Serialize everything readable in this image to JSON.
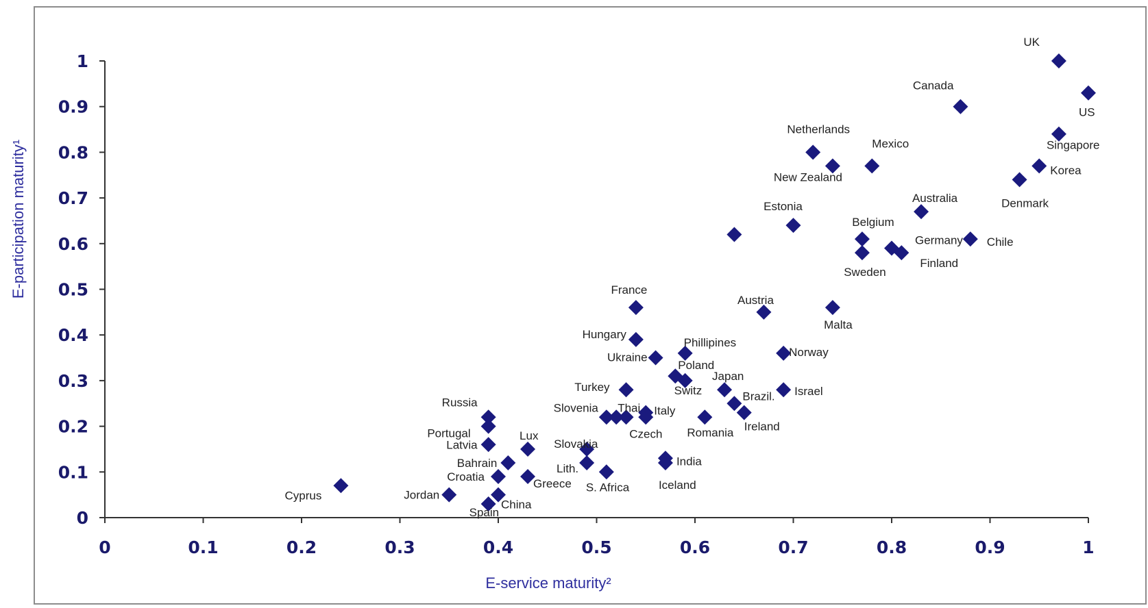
{
  "colors": {
    "marker": "#1a1a7e",
    "axis_text": "#1a1a6b",
    "axis_title": "#2e2e9e",
    "border": "#8c8c8c"
  },
  "chart_data": {
    "type": "scatter",
    "xlabel": "E-service maturity²",
    "ylabel": "E-participation maturity¹",
    "xlim": [
      0,
      1
    ],
    "ylim": [
      0,
      1
    ],
    "x_ticks": [
      "0",
      "0.1",
      "0.2",
      "0.3",
      "0.4",
      "0.5",
      "0.6",
      "0.7",
      "0.8",
      "0.9",
      "1"
    ],
    "y_ticks": [
      "0",
      "0.1",
      "0.2",
      "0.3",
      "0.4",
      "0.5",
      "0.6",
      "0.7",
      "0.8",
      "0.9",
      "1"
    ],
    "grid": false,
    "legend": "none",
    "points": [
      {
        "label": "UK",
        "x": 0.97,
        "y": 1.0
      },
      {
        "label": "US",
        "x": 1.0,
        "y": 0.93
      },
      {
        "label": "Canada",
        "x": 0.87,
        "y": 0.9
      },
      {
        "label": "Singapore",
        "x": 0.97,
        "y": 0.84
      },
      {
        "label": "Netherlands",
        "x": 0.72,
        "y": 0.8
      },
      {
        "label": "New Zealand",
        "x": 0.74,
        "y": 0.77
      },
      {
        "label": "Mexico",
        "x": 0.78,
        "y": 0.77
      },
      {
        "label": "Korea",
        "x": 0.95,
        "y": 0.77
      },
      {
        "label": "Denmark",
        "x": 0.93,
        "y": 0.74
      },
      {
        "label": "Australia",
        "x": 0.83,
        "y": 0.67
      },
      {
        "label": "Estonia",
        "x": 0.7,
        "y": 0.64
      },
      {
        "label": "",
        "x": 0.64,
        "y": 0.62
      },
      {
        "label": "Belgium",
        "x": 0.77,
        "y": 0.61
      },
      {
        "label": "Chile",
        "x": 0.88,
        "y": 0.61
      },
      {
        "label": "Germany",
        "x": 0.8,
        "y": 0.59
      },
      {
        "label": "Finland",
        "x": 0.81,
        "y": 0.58
      },
      {
        "label": "Sweden",
        "x": 0.77,
        "y": 0.58
      },
      {
        "label": "France",
        "x": 0.54,
        "y": 0.46
      },
      {
        "label": "Malta",
        "x": 0.74,
        "y": 0.46
      },
      {
        "label": "Austria",
        "x": 0.67,
        "y": 0.45
      },
      {
        "label": "Hungary",
        "x": 0.54,
        "y": 0.39
      },
      {
        "label": "Phillipines",
        "x": 0.59,
        "y": 0.36
      },
      {
        "label": "Norway",
        "x": 0.69,
        "y": 0.36
      },
      {
        "label": "Ukraine",
        "x": 0.56,
        "y": 0.35
      },
      {
        "label": "Poland",
        "x": 0.58,
        "y": 0.31
      },
      {
        "label": "Switz",
        "x": 0.59,
        "y": 0.3
      },
      {
        "label": "Turkey",
        "x": 0.53,
        "y": 0.28
      },
      {
        "label": "Japan",
        "x": 0.63,
        "y": 0.28
      },
      {
        "label": "Israel",
        "x": 0.69,
        "y": 0.28
      },
      {
        "label": "Brazil.",
        "x": 0.64,
        "y": 0.25
      },
      {
        "label": "Ireland",
        "x": 0.65,
        "y": 0.23
      },
      {
        "label": "Italy",
        "x": 0.55,
        "y": 0.23
      },
      {
        "label": "Russia",
        "x": 0.39,
        "y": 0.22
      },
      {
        "label": "Slovenia",
        "x": 0.51,
        "y": 0.22
      },
      {
        "label": "Thai",
        "x": 0.52,
        "y": 0.22
      },
      {
        "label": "",
        "x": 0.53,
        "y": 0.22
      },
      {
        "label": "Czech",
        "x": 0.55,
        "y": 0.22
      },
      {
        "label": "Romania",
        "x": 0.61,
        "y": 0.22
      },
      {
        "label": "Portugal",
        "x": 0.39,
        "y": 0.2
      },
      {
        "label": "Latvia",
        "x": 0.39,
        "y": 0.16
      },
      {
        "label": "Lux",
        "x": 0.43,
        "y": 0.15
      },
      {
        "label": "Slovakia",
        "x": 0.49,
        "y": 0.15
      },
      {
        "label": "India",
        "x": 0.57,
        "y": 0.13
      },
      {
        "label": "Bahrain",
        "x": 0.41,
        "y": 0.12
      },
      {
        "label": "Lith.",
        "x": 0.49,
        "y": 0.12
      },
      {
        "label": "Iceland",
        "x": 0.57,
        "y": 0.12
      },
      {
        "label": "S. Africa",
        "x": 0.51,
        "y": 0.1
      },
      {
        "label": "Croatia",
        "x": 0.4,
        "y": 0.09
      },
      {
        "label": "Greece",
        "x": 0.43,
        "y": 0.09
      },
      {
        "label": "Cyprus",
        "x": 0.24,
        "y": 0.07
      },
      {
        "label": "Jordan",
        "x": 0.35,
        "y": 0.05
      },
      {
        "label": "China",
        "x": 0.4,
        "y": 0.05
      },
      {
        "label": "Spain",
        "x": 0.39,
        "y": 0.03
      }
    ]
  }
}
